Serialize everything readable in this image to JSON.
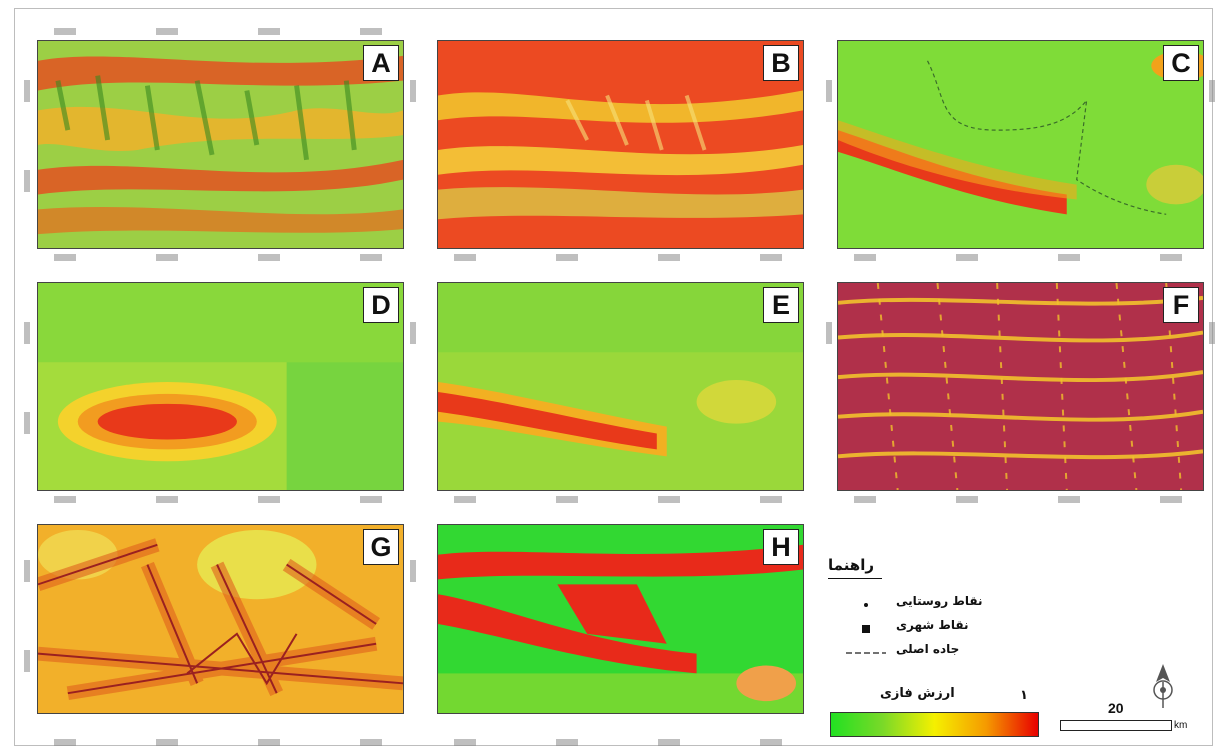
{
  "panels": [
    {
      "label": "A"
    },
    {
      "label": "B"
    },
    {
      "label": "C"
    },
    {
      "label": "D"
    },
    {
      "label": "E"
    },
    {
      "label": "F"
    },
    {
      "label": "G"
    },
    {
      "label": "H"
    }
  ],
  "legend": {
    "title": "راهنما",
    "items": [
      {
        "label": "نقاط روستایی",
        "symbol": "small-dot"
      },
      {
        "label": "نقاط شهری",
        "symbol": "square"
      },
      {
        "label": "جاده اصلی",
        "symbol": "dashed-line"
      }
    ],
    "value_title": "ارزش فازی",
    "value_max": "۱",
    "value_min": "",
    "colors": [
      "#22e022",
      "#f5f000",
      "#e80000"
    ]
  },
  "scale_bar": {
    "value": "20",
    "unit": "km"
  }
}
